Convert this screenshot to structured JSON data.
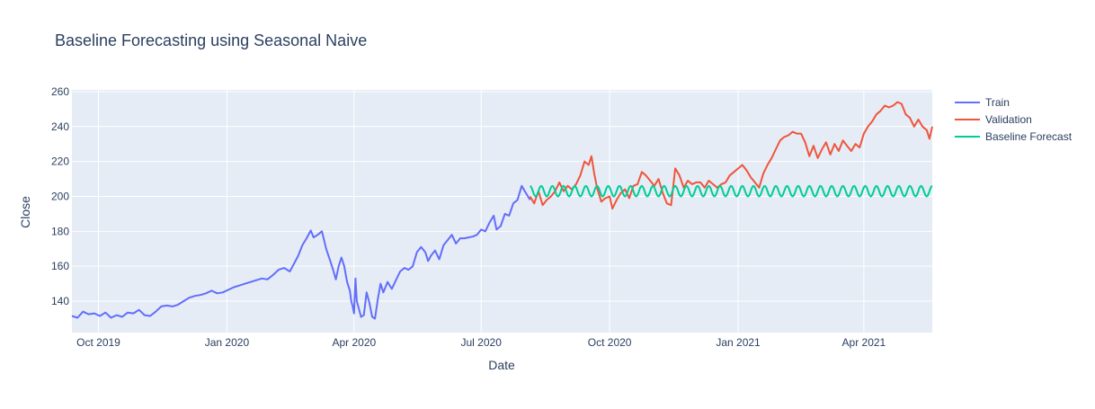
{
  "chart_data": {
    "type": "line",
    "title": "Baseline Forecasting using Seasonal Naive",
    "xlabel": "Date",
    "ylabel": "Close",
    "x_ticks": [
      {
        "date": "2019-10-01",
        "label": "Oct 2019"
      },
      {
        "date": "2020-01-01",
        "label": "Jan 2020"
      },
      {
        "date": "2020-04-01",
        "label": "Apr 2020"
      },
      {
        "date": "2020-07-01",
        "label": "Jul 2020"
      },
      {
        "date": "2020-10-01",
        "label": "Oct 2020"
      },
      {
        "date": "2021-01-01",
        "label": "Jan 2021"
      },
      {
        "date": "2021-04-01",
        "label": "Apr 2021"
      }
    ],
    "y_ticks": [
      140,
      160,
      180,
      200,
      220,
      240,
      260
    ],
    "xlim": [
      "2019-09-12",
      "2021-05-20"
    ],
    "ylim": [
      122,
      261
    ],
    "grid": true,
    "legend_position": "right",
    "colors": {
      "train": "#636efa",
      "validation": "#ef553b",
      "baseline": "#00cc96",
      "plot_bg": "#e5ecf6",
      "grid": "#ffffff",
      "text": "#2a3f5f"
    },
    "series": [
      {
        "name": "Train",
        "color": "#636efa",
        "points": [
          [
            "2019-09-12",
            131.5
          ],
          [
            "2019-09-16",
            130.5
          ],
          [
            "2019-09-20",
            134.0
          ],
          [
            "2019-09-24",
            132.5
          ],
          [
            "2019-09-28",
            133.0
          ],
          [
            "2019-10-02",
            131.5
          ],
          [
            "2019-10-06",
            133.5
          ],
          [
            "2019-10-10",
            130.5
          ],
          [
            "2019-10-14",
            132.0
          ],
          [
            "2019-10-18",
            131.0
          ],
          [
            "2019-10-22",
            133.5
          ],
          [
            "2019-10-26",
            133.0
          ],
          [
            "2019-10-30",
            135.0
          ],
          [
            "2019-11-03",
            132.0
          ],
          [
            "2019-11-07",
            131.5
          ],
          [
            "2019-11-11",
            134.0
          ],
          [
            "2019-11-15",
            137.0
          ],
          [
            "2019-11-19",
            137.5
          ],
          [
            "2019-11-23",
            137.0
          ],
          [
            "2019-11-27",
            138.0
          ],
          [
            "2019-12-01",
            140.0
          ],
          [
            "2019-12-05",
            142.0
          ],
          [
            "2019-12-09",
            143.0
          ],
          [
            "2019-12-13",
            143.5
          ],
          [
            "2019-12-17",
            144.5
          ],
          [
            "2019-12-21",
            146.0
          ],
          [
            "2019-12-25",
            144.5
          ],
          [
            "2019-12-29",
            145.0
          ],
          [
            "2020-01-02",
            146.5
          ],
          [
            "2020-01-06",
            148.0
          ],
          [
            "2020-01-10",
            149.0
          ],
          [
            "2020-01-14",
            150.0
          ],
          [
            "2020-01-18",
            151.0
          ],
          [
            "2020-01-22",
            152.0
          ],
          [
            "2020-01-26",
            153.0
          ],
          [
            "2020-01-30",
            152.5
          ],
          [
            "2020-02-03",
            155.0
          ],
          [
            "2020-02-07",
            158.0
          ],
          [
            "2020-02-11",
            159.0
          ],
          [
            "2020-02-15",
            157.0
          ],
          [
            "2020-02-19",
            163.0
          ],
          [
            "2020-02-21",
            166.0
          ],
          [
            "2020-02-24",
            172.0
          ],
          [
            "2020-02-27",
            176.0
          ],
          [
            "2020-03-01",
            180.5
          ],
          [
            "2020-03-03",
            176.5
          ],
          [
            "2020-03-06",
            178.0
          ],
          [
            "2020-03-09",
            180.0
          ],
          [
            "2020-03-12",
            170.0
          ],
          [
            "2020-03-15",
            163.0
          ],
          [
            "2020-03-17",
            158.0
          ],
          [
            "2020-03-19",
            152.5
          ],
          [
            "2020-03-21",
            160.0
          ],
          [
            "2020-03-23",
            165.0
          ],
          [
            "2020-03-25",
            160.0
          ],
          [
            "2020-03-27",
            151.0
          ],
          [
            "2020-03-29",
            146.0
          ],
          [
            "2020-03-30",
            140.0
          ],
          [
            "2020-03-31",
            137.0
          ],
          [
            "2020-04-01",
            133.0
          ],
          [
            "2020-04-02",
            153.0
          ],
          [
            "2020-04-03",
            140.0
          ],
          [
            "2020-04-06",
            131.0
          ],
          [
            "2020-04-08",
            132.0
          ],
          [
            "2020-04-10",
            145.0
          ],
          [
            "2020-04-12",
            139.0
          ],
          [
            "2020-04-14",
            131.0
          ],
          [
            "2020-04-16",
            130.0
          ],
          [
            "2020-04-18",
            141.0
          ],
          [
            "2020-04-20",
            150.0
          ],
          [
            "2020-04-22",
            145.0
          ],
          [
            "2020-04-25",
            151.0
          ],
          [
            "2020-04-28",
            147.0
          ],
          [
            "2020-05-01",
            152.0
          ],
          [
            "2020-05-04",
            157.0
          ],
          [
            "2020-05-07",
            159.0
          ],
          [
            "2020-05-10",
            158.0
          ],
          [
            "2020-05-13",
            160.0
          ],
          [
            "2020-05-16",
            168.0
          ],
          [
            "2020-05-19",
            171.0
          ],
          [
            "2020-05-22",
            168.0
          ],
          [
            "2020-05-24",
            163.0
          ],
          [
            "2020-05-26",
            166.0
          ],
          [
            "2020-05-29",
            169.0
          ],
          [
            "2020-06-01",
            164.0
          ],
          [
            "2020-06-04",
            172.0
          ],
          [
            "2020-06-07",
            175.0
          ],
          [
            "2020-06-10",
            178.0
          ],
          [
            "2020-06-13",
            173.0
          ],
          [
            "2020-06-16",
            176.0
          ],
          [
            "2020-06-19",
            176.0
          ],
          [
            "2020-06-22",
            176.5
          ],
          [
            "2020-06-25",
            177.0
          ],
          [
            "2020-06-28",
            178.0
          ],
          [
            "2020-07-01",
            181.0
          ],
          [
            "2020-07-04",
            180.0
          ],
          [
            "2020-07-07",
            185.0
          ],
          [
            "2020-07-10",
            189.0
          ],
          [
            "2020-07-12",
            181.0
          ],
          [
            "2020-07-15",
            183.0
          ],
          [
            "2020-07-18",
            190.0
          ],
          [
            "2020-07-21",
            189.0
          ],
          [
            "2020-07-24",
            196.0
          ],
          [
            "2020-07-27",
            198.0
          ],
          [
            "2020-07-30",
            206.0
          ],
          [
            "2020-08-02",
            202.0
          ],
          [
            "2020-08-05",
            198.0
          ]
        ]
      },
      {
        "name": "Validation",
        "color": "#ef553b",
        "points": [
          [
            "2020-08-05",
            200.0
          ],
          [
            "2020-08-08",
            196.0
          ],
          [
            "2020-08-11",
            203.0
          ],
          [
            "2020-08-14",
            195.0
          ],
          [
            "2020-08-17",
            198.0
          ],
          [
            "2020-08-20",
            200.0
          ],
          [
            "2020-08-23",
            203.0
          ],
          [
            "2020-08-26",
            208.0
          ],
          [
            "2020-08-29",
            203.0
          ],
          [
            "2020-09-01",
            206.0
          ],
          [
            "2020-09-04",
            204.0
          ],
          [
            "2020-09-07",
            207.0
          ],
          [
            "2020-09-10",
            212.0
          ],
          [
            "2020-09-13",
            220.0
          ],
          [
            "2020-09-16",
            218.0
          ],
          [
            "2020-09-18",
            223.0
          ],
          [
            "2020-09-20",
            213.0
          ],
          [
            "2020-09-22",
            205.0
          ],
          [
            "2020-09-25",
            197.0
          ],
          [
            "2020-09-28",
            199.0
          ],
          [
            "2020-10-01",
            200.0
          ],
          [
            "2020-10-03",
            193.0
          ],
          [
            "2020-10-06",
            198.0
          ],
          [
            "2020-10-09",
            202.0
          ],
          [
            "2020-10-12",
            204.0
          ],
          [
            "2020-10-15",
            199.0
          ],
          [
            "2020-10-18",
            206.0
          ],
          [
            "2020-10-21",
            207.0
          ],
          [
            "2020-10-24",
            214.0
          ],
          [
            "2020-10-27",
            212.0
          ],
          [
            "2020-10-30",
            209.0
          ],
          [
            "2020-11-02",
            206.0
          ],
          [
            "2020-11-05",
            210.0
          ],
          [
            "2020-11-08",
            202.0
          ],
          [
            "2020-11-11",
            196.0
          ],
          [
            "2020-11-14",
            195.0
          ],
          [
            "2020-11-17",
            216.0
          ],
          [
            "2020-11-20",
            212.0
          ],
          [
            "2020-11-23",
            205.0
          ],
          [
            "2020-11-26",
            209.0
          ],
          [
            "2020-11-29",
            207.0
          ],
          [
            "2020-12-02",
            208.0
          ],
          [
            "2020-12-05",
            208.0
          ],
          [
            "2020-12-08",
            205.0
          ],
          [
            "2020-12-11",
            209.0
          ],
          [
            "2020-12-14",
            207.0
          ],
          [
            "2020-12-17",
            205.0
          ],
          [
            "2020-12-20",
            207.0
          ],
          [
            "2020-12-23",
            208.0
          ],
          [
            "2020-12-26",
            212.0
          ],
          [
            "2020-12-29",
            214.0
          ],
          [
            "2021-01-01",
            216.0
          ],
          [
            "2021-01-04",
            218.0
          ],
          [
            "2021-01-07",
            215.0
          ],
          [
            "2021-01-10",
            211.0
          ],
          [
            "2021-01-13",
            208.0
          ],
          [
            "2021-01-16",
            205.0
          ],
          [
            "2021-01-19",
            213.0
          ],
          [
            "2021-01-22",
            218.0
          ],
          [
            "2021-01-25",
            222.0
          ],
          [
            "2021-01-28",
            227.0
          ],
          [
            "2021-01-31",
            232.0
          ],
          [
            "2021-02-03",
            234.0
          ],
          [
            "2021-02-06",
            235.0
          ],
          [
            "2021-02-09",
            237.0
          ],
          [
            "2021-02-12",
            236.0
          ],
          [
            "2021-02-15",
            236.0
          ],
          [
            "2021-02-18",
            231.0
          ],
          [
            "2021-02-21",
            223.0
          ],
          [
            "2021-02-24",
            229.0
          ],
          [
            "2021-02-27",
            222.0
          ],
          [
            "2021-03-02",
            227.0
          ],
          [
            "2021-03-05",
            231.0
          ],
          [
            "2021-03-08",
            224.0
          ],
          [
            "2021-03-11",
            230.0
          ],
          [
            "2021-03-14",
            226.0
          ],
          [
            "2021-03-17",
            232.0
          ],
          [
            "2021-03-20",
            229.0
          ],
          [
            "2021-03-23",
            226.0
          ],
          [
            "2021-03-26",
            230.0
          ],
          [
            "2021-03-29",
            228.0
          ],
          [
            "2021-04-01",
            236.0
          ],
          [
            "2021-04-04",
            240.0
          ],
          [
            "2021-04-07",
            243.0
          ],
          [
            "2021-04-10",
            247.0
          ],
          [
            "2021-04-13",
            249.0
          ],
          [
            "2021-04-16",
            252.0
          ],
          [
            "2021-04-19",
            251.0
          ],
          [
            "2021-04-22",
            252.0
          ],
          [
            "2021-04-25",
            254.0
          ],
          [
            "2021-04-28",
            253.0
          ],
          [
            "2021-05-01",
            247.0
          ],
          [
            "2021-05-04",
            245.0
          ],
          [
            "2021-05-07",
            240.0
          ],
          [
            "2021-05-10",
            244.0
          ],
          [
            "2021-05-13",
            240.0
          ],
          [
            "2021-05-16",
            238.0
          ],
          [
            "2021-05-18",
            233.0
          ],
          [
            "2021-05-20",
            240.0
          ]
        ]
      },
      {
        "name": "Baseline Forecast",
        "color": "#00cc96",
        "seasonal": {
          "start": "2020-08-05",
          "end": "2021-05-20",
          "period_days": 8,
          "high": 206.0,
          "low": 200.0
        }
      }
    ]
  }
}
